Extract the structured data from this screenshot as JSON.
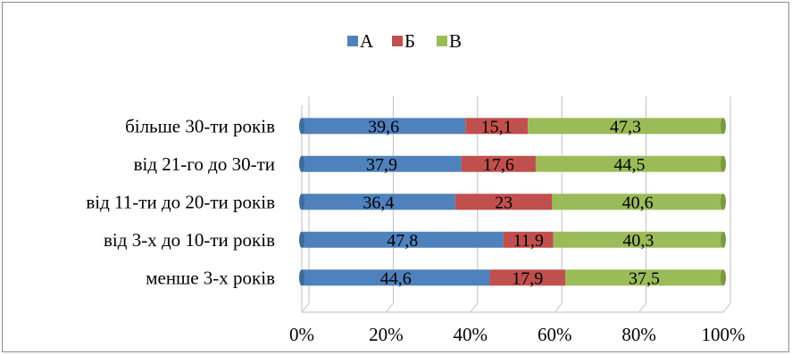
{
  "chart_data": {
    "type": "bar",
    "orientation": "horizontal",
    "stacked": "percent",
    "categories": [
      "більше 30-ти років",
      "від 21-го до 30-ти",
      "від 11-ти до 20-ти років",
      "від 3-х до 10-ти років",
      "менше 3-х років"
    ],
    "series": [
      {
        "name": "А",
        "color": "#4f81bd",
        "values": [
          39.6,
          37.9,
          36.4,
          47.8,
          44.6
        ],
        "labels": [
          "39,6",
          "37,9",
          "36,4",
          "47,8",
          "44,6"
        ]
      },
      {
        "name": "Б",
        "color": "#c0504d",
        "values": [
          15.1,
          17.6,
          23,
          11.9,
          17.9
        ],
        "labels": [
          "15,1",
          "17,6",
          "23",
          "11,9",
          "17,9"
        ]
      },
      {
        "name": "В",
        "color": "#9bbb59",
        "values": [
          47.3,
          44.5,
          40.6,
          40.3,
          37.5
        ],
        "labels": [
          "47,3",
          "44,5",
          "40,6",
          "40,3",
          "37,5"
        ]
      }
    ],
    "x_ticks": [
      "0%",
      "20%",
      "40%",
      "60%",
      "80%",
      "100%"
    ],
    "xlim": [
      0,
      100
    ],
    "legend": "top",
    "grid": true
  }
}
